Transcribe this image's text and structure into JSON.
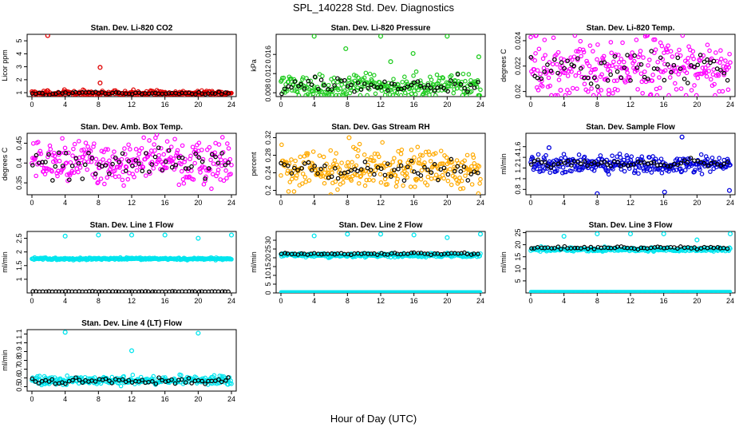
{
  "title": "SPL_140228  Std. Dev. Diagnostics",
  "x_axis_title": "Hour of Day (UTC)",
  "colors": {
    "overlay": "#000000",
    "co2": "#e00000",
    "pressure": "#22cc22",
    "temp": "#ff00ff",
    "rh": "#ffaa00",
    "flow": "#0000dd",
    "lineflow": "#00e5ee"
  },
  "chart_data": [
    {
      "id": "co2",
      "type": "scatter",
      "title": "Stan. Dev. Li-820 CO2",
      "ylabel": "Licor ppm",
      "xlim": [
        0,
        24
      ],
      "xticks": [
        0,
        4,
        8,
        12,
        16,
        20,
        24
      ],
      "ylim": [
        0.7,
        5.5
      ],
      "yticks": [
        1,
        2,
        3,
        4,
        5
      ],
      "color_key": "co2",
      "baseline": 0.95,
      "spread": 0.1,
      "outliers": [
        [
          1.9,
          5.4
        ],
        [
          8.2,
          2.95
        ],
        [
          8.2,
          1.75
        ],
        [
          1.9,
          1.15
        ]
      ],
      "overlay_baseline": 0.95,
      "overlay_spread": 0.05
    },
    {
      "id": "pressure",
      "type": "scatter",
      "title": "Stan. Dev. Li-820 Pressure",
      "ylabel": "kPa",
      "xlim": [
        0,
        24
      ],
      "xticks": [
        0,
        4,
        8,
        12,
        16,
        20,
        24
      ],
      "ylim": [
        0.0072,
        0.0202
      ],
      "yticks": [
        0.008,
        0.012,
        0.016
      ],
      "color_key": "pressure",
      "baseline": 0.0093,
      "spread": 0.0012,
      "outliers": [
        [
          4.0,
          0.0198
        ],
        [
          7.8,
          0.0172
        ],
        [
          12.0,
          0.0198
        ],
        [
          15.9,
          0.0162
        ],
        [
          20.0,
          0.0198
        ],
        [
          23.8,
          0.0155
        ],
        [
          13.2,
          0.0145
        ]
      ],
      "overlay_baseline": 0.0094,
      "overlay_spread": 0.0008
    },
    {
      "id": "temp",
      "type": "scatter",
      "title": "Stan. Dev. Li-820 Temp.",
      "ylabel": "degrees C",
      "xlim": [
        0,
        24
      ],
      "xticks": [
        0,
        4,
        8,
        12,
        16,
        20,
        24
      ],
      "ylim": [
        0.0196,
        0.0245
      ],
      "yticks": [
        0.02,
        0.022,
        0.024
      ],
      "color_key": "temp",
      "baseline": 0.0218,
      "spread": 0.0012,
      "outliers": [
        [
          0.6,
          0.0244
        ],
        [
          3.6,
          0.0201
        ],
        [
          9.4,
          0.0201
        ]
      ],
      "overlay_baseline": 0.0217,
      "overlay_spread": 0.0007
    },
    {
      "id": "boxtemp",
      "type": "scatter",
      "title": "Stan. Dev. Amb. Box Temp.",
      "ylabel": "degrees C",
      "xlim": [
        0,
        24
      ],
      "xticks": [
        0,
        4,
        8,
        12,
        16,
        20,
        24
      ],
      "ylim": [
        0.32,
        0.475
      ],
      "yticks": [
        0.35,
        0.4,
        0.45
      ],
      "color_key": "temp",
      "baseline": 0.405,
      "spread": 0.028,
      "outliers": [],
      "overlay_baseline": 0.4,
      "overlay_spread": 0.018
    },
    {
      "id": "rh",
      "type": "scatter",
      "title": "Stan. Dev. Gas Stream RH",
      "ylabel": "percent",
      "xlim": [
        0,
        24
      ],
      "xticks": [
        0,
        4,
        8,
        12,
        16,
        20,
        24
      ],
      "ylim": [
        0.19,
        0.33
      ],
      "yticks": [
        0.2,
        0.24,
        0.28,
        0.32
      ],
      "color_key": "rh",
      "baseline": 0.25,
      "spread": 0.022,
      "outliers": [
        [
          6.0,
          0.19
        ],
        [
          8.2,
          0.32
        ]
      ],
      "overlay_baseline": 0.245,
      "overlay_spread": 0.012
    },
    {
      "id": "sampleflow",
      "type": "scatter",
      "title": "Stan. Dev. Sample Flow",
      "ylabel": "ml/min",
      "xlim": [
        0,
        24
      ],
      "xticks": [
        0,
        4,
        8,
        12,
        16,
        20,
        24
      ],
      "ylim": [
        0.7,
        1.85
      ],
      "yticks": [
        0.8,
        1.0,
        1.2,
        1.4,
        1.6
      ],
      "color_key": "flow",
      "baseline": 1.27,
      "spread": 0.08,
      "outliers": [
        [
          8.0,
          0.72
        ],
        [
          16.1,
          0.75
        ],
        [
          18.2,
          1.78
        ],
        [
          23.9,
          0.78
        ],
        [
          2.2,
          1.58
        ]
      ],
      "overlay_baseline": 1.28,
      "overlay_spread": 0.04
    },
    {
      "id": "line1",
      "type": "scatter",
      "title": "Stan. Dev. Line 1 Flow",
      "ylabel": "ml/min",
      "xlim": [
        0,
        24
      ],
      "xticks": [
        0,
        4,
        8,
        12,
        16,
        20,
        24
      ],
      "ylim": [
        0.5,
        2.75
      ],
      "yticks": [
        1.0,
        1.5,
        2.0,
        2.5
      ],
      "color_key": "lineflow",
      "baseline": 1.75,
      "spread": 0.02,
      "outliers": [
        [
          4.0,
          2.58
        ],
        [
          8.0,
          2.62
        ],
        [
          12.0,
          2.62
        ],
        [
          16.0,
          2.62
        ],
        [
          20.0,
          2.5
        ],
        [
          24.0,
          2.62
        ]
      ],
      "overlay_baseline": 0.55,
      "overlay_spread": 0.005
    },
    {
      "id": "line2",
      "type": "scatter",
      "title": "Stan. Dev. Line 2 Flow",
      "ylabel": "ml/min",
      "xlim": [
        0,
        24
      ],
      "xticks": [
        0,
        4,
        8,
        12,
        16,
        20,
        24
      ],
      "ylim": [
        0,
        35
      ],
      "yticks": [
        0,
        5,
        10,
        15,
        20,
        25,
        30
      ],
      "color_key": "lineflow",
      "baseline": 21.5,
      "spread": 0.5,
      "outliers": [
        [
          4.0,
          32.5
        ],
        [
          8.0,
          33.5
        ],
        [
          12.0,
          33.5
        ],
        [
          16.0,
          33.0
        ],
        [
          20.0,
          31.5
        ],
        [
          24.0,
          33.5
        ]
      ],
      "overlay_baseline": 22.3,
      "overlay_spread": 0.3,
      "zero_band": 0.5
    },
    {
      "id": "line3",
      "type": "scatter",
      "title": "Stan. Dev. Line 3 Flow",
      "ylabel": "ml/min",
      "xlim": [
        0,
        24
      ],
      "xticks": [
        0,
        4,
        8,
        12,
        16,
        20,
        24
      ],
      "ylim": [
        0,
        25.5
      ],
      "yticks": [
        5,
        10,
        15,
        20,
        25
      ],
      "color_key": "lineflow",
      "baseline": 18.0,
      "spread": 0.4,
      "outliers": [
        [
          4.0,
          23.5
        ],
        [
          8.0,
          24.5
        ],
        [
          12.0,
          24.5
        ],
        [
          16.0,
          24.5
        ],
        [
          20.0,
          22.0
        ],
        [
          24.0,
          24.5
        ]
      ],
      "overlay_baseline": 18.6,
      "overlay_spread": 0.3,
      "zero_band": 0.5
    },
    {
      "id": "line4",
      "type": "scatter",
      "title": "Stan. Dev. Line 4 (LT) Flow",
      "ylabel": "ml/min",
      "xlim": [
        0,
        24
      ],
      "xticks": [
        0,
        4,
        8,
        12,
        16,
        20,
        24
      ],
      "ylim": [
        0.45,
        1.15
      ],
      "yticks": [
        0.5,
        0.6,
        0.7,
        0.8,
        0.9,
        1.0,
        1.1
      ],
      "color_key": "lineflow",
      "baseline": 0.57,
      "spread": 0.025,
      "outliers": [
        [
          4.0,
          1.12
        ],
        [
          12.0,
          0.91
        ],
        [
          20.0,
          1.11
        ]
      ],
      "overlay_baseline": 0.565,
      "overlay_spread": 0.018
    }
  ]
}
